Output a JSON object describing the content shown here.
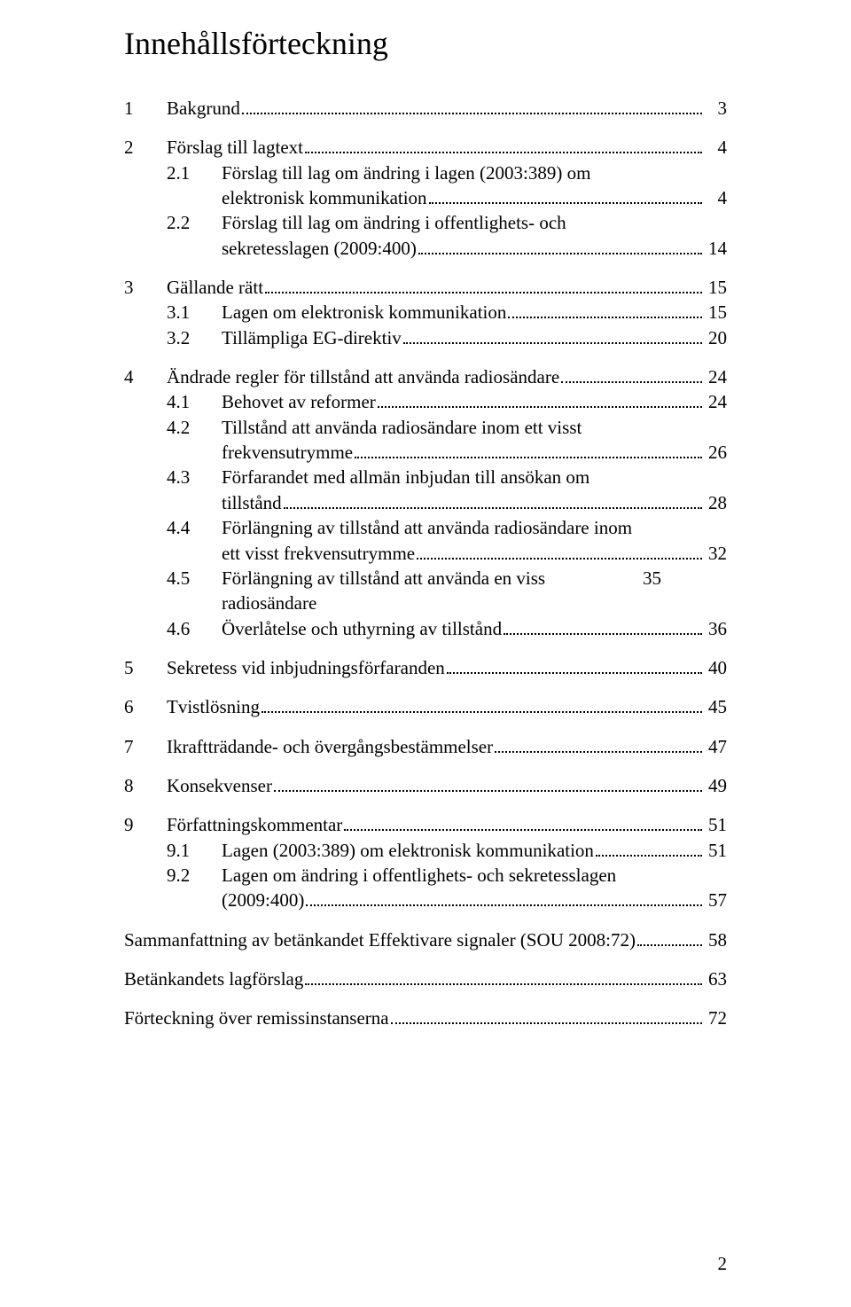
{
  "title": "Innehållsförteckning",
  "page_number": "2",
  "colors": {
    "text": "#000000",
    "background": "#ffffff"
  },
  "typography": {
    "body_fontsize_pt": 16,
    "title_fontsize_pt": 27,
    "font_family": "Times New Roman"
  },
  "toc": [
    {
      "type": "lvl1",
      "num": "1",
      "text": "Bakgrund",
      "page": "3"
    },
    {
      "type": "lvl1",
      "num": "2",
      "text": "Förslag till lagtext",
      "page": "4"
    },
    {
      "type": "lvl2",
      "num": "2.1",
      "text_lines": [
        "Förslag till lag om ändring i lagen (2003:389) om",
        "elektronisk kommunikation"
      ],
      "page": "4"
    },
    {
      "type": "lvl2",
      "num": "2.2",
      "text_lines": [
        "Förslag till lag om ändring i offentlighets- och",
        "sekretesslagen (2009:400)"
      ],
      "page": "14"
    },
    {
      "type": "lvl1",
      "num": "3",
      "text": "Gällande rätt",
      "page": "15"
    },
    {
      "type": "lvl2",
      "num": "3.1",
      "text_lines": [
        "Lagen om elektronisk kommunikation"
      ],
      "page": "15"
    },
    {
      "type": "lvl2",
      "num": "3.2",
      "text_lines": [
        "Tillämpliga EG-direktiv"
      ],
      "page": "20"
    },
    {
      "type": "lvl1",
      "num": "4",
      "text": "Ändrade regler för tillstånd att använda radiosändare",
      "page": "24"
    },
    {
      "type": "lvl2",
      "num": "4.1",
      "text_lines": [
        "Behovet av reformer"
      ],
      "page": "24"
    },
    {
      "type": "lvl2",
      "num": "4.2",
      "text_lines": [
        "Tillstånd att använda radiosändare inom ett visst",
        "frekvensutrymme"
      ],
      "page": "26"
    },
    {
      "type": "lvl2",
      "num": "4.3",
      "text_lines": [
        "Förfarandet med allmän inbjudan till ansökan om",
        "tillstånd"
      ],
      "page": "28"
    },
    {
      "type": "lvl2",
      "num": "4.4",
      "text_lines": [
        "Förlängning av tillstånd att använda radiosändare inom",
        "ett visst frekvensutrymme"
      ],
      "page": "32"
    },
    {
      "type": "lvl2",
      "num": "4.5",
      "text_lines": [
        "Förlängning av tillstånd att använda en viss radiosändare"
      ],
      "page": "35",
      "tight": true
    },
    {
      "type": "lvl2",
      "num": "4.6",
      "text_lines": [
        "Överlåtelse och uthyrning av tillstånd"
      ],
      "page": "36"
    },
    {
      "type": "lvl1",
      "num": "5",
      "text": "Sekretess vid inbjudningsförfaranden",
      "page": "40"
    },
    {
      "type": "lvl1",
      "num": "6",
      "text": "Tvistlösning",
      "page": "45"
    },
    {
      "type": "lvl1",
      "num": "7",
      "text": "Ikraftträdande- och övergångsbestämmelser",
      "page": "47"
    },
    {
      "type": "lvl1",
      "num": "8",
      "text": "Konsekvenser",
      "page": "49"
    },
    {
      "type": "lvl1",
      "num": "9",
      "text": "Författningskommentar",
      "page": "51"
    },
    {
      "type": "lvl2",
      "num": "9.1",
      "text_lines": [
        "Lagen (2003:389) om elektronisk kommunikation"
      ],
      "page": "51"
    },
    {
      "type": "lvl2",
      "num": "9.2",
      "text_lines": [
        "Lagen om ändring i offentlighets- och sekretesslagen",
        "(2009:400)"
      ],
      "page": "57"
    },
    {
      "type": "nonum",
      "text": "Sammanfattning av betänkandet Effektivare signaler (SOU 2008:72)",
      "page": "58"
    },
    {
      "type": "nonum",
      "text": "Betänkandets lagförslag",
      "page": "63"
    },
    {
      "type": "nonum",
      "text": "Förteckning över remissinstanserna",
      "page": "72"
    }
  ]
}
